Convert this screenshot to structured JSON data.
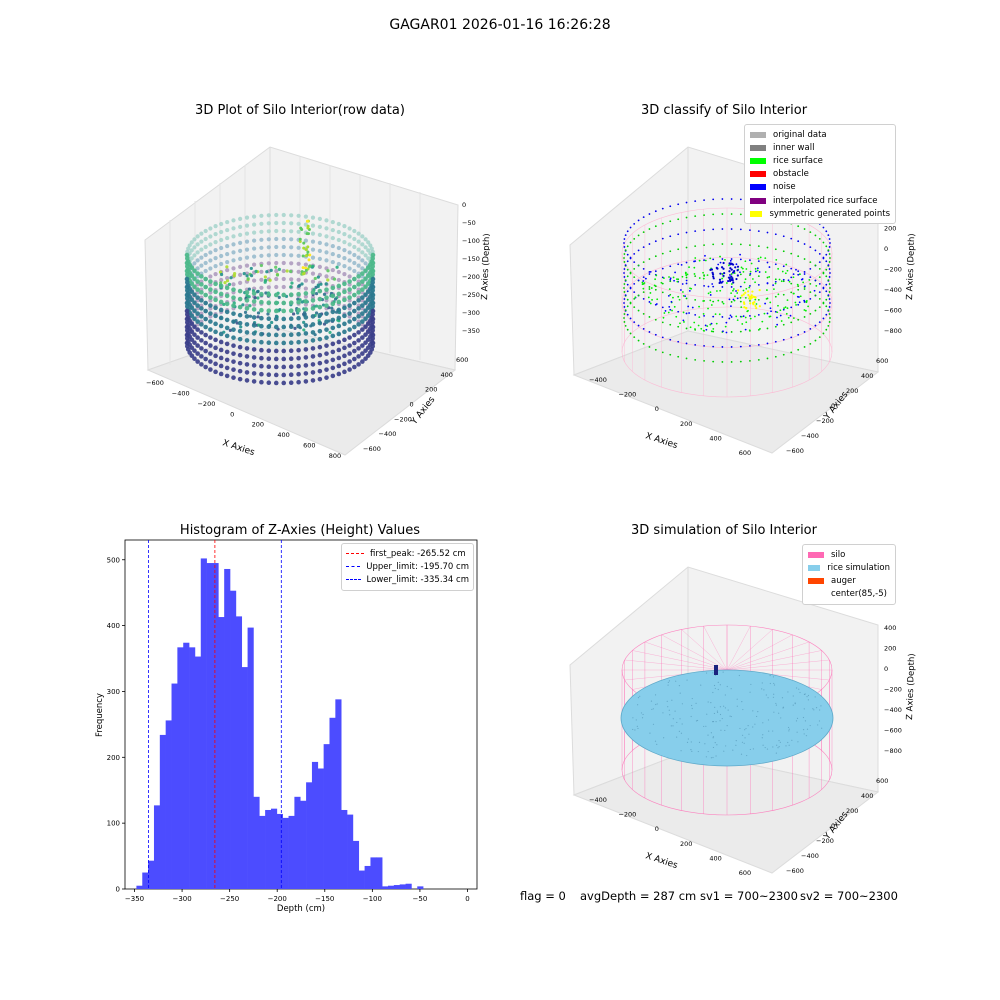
{
  "suptitle": "GAGAR01 2026-01-16 16:26:28",
  "panels": {
    "raw": {
      "title": "3D Plot of Silo Interior(row data)",
      "xlabel": "X Axies",
      "ylabel": "Y Axies",
      "zlabel": "Z Axies (Depth)",
      "xticks": [
        "−600",
        "−400",
        "−200",
        "0",
        "200",
        "400",
        "600",
        "800"
      ],
      "yticks": [
        "−600",
        "−400",
        "−200",
        "0",
        "200",
        "400",
        "600"
      ],
      "zticks": [
        "0",
        "−50",
        "−100",
        "−150",
        "−200",
        "−250",
        "−300",
        "−350"
      ]
    },
    "classify": {
      "title": "3D classify of Silo Interior",
      "xlabel": "X Axies",
      "ylabel": "Y Axies",
      "zlabel": "Z Axies (Depth)",
      "xticks": [
        "−400",
        "−200",
        "0",
        "200",
        "400",
        "600"
      ],
      "yticks": [
        "−600",
        "−400",
        "−200",
        "0",
        "200",
        "400",
        "600"
      ],
      "zticks": [
        "400",
        "200",
        "0",
        "−200",
        "−400",
        "−600",
        "−800"
      ],
      "legend": [
        {
          "label": "original data",
          "color": "#b0b0b0"
        },
        {
          "label": "inner wall",
          "color": "#808080"
        },
        {
          "label": "rice surface",
          "color": "#00ff00"
        },
        {
          "label": "obstacle",
          "color": "#ff0000"
        },
        {
          "label": "noise",
          "color": "#0000ff"
        },
        {
          "label": "interpolated rice surface",
          "color": "#800080"
        },
        {
          "label": "symmetric generated points",
          "color": "#ffff00"
        }
      ]
    },
    "simulation": {
      "title": "3D simulation of Silo Interior",
      "xlabel": "X Axies",
      "ylabel": "Y Axies",
      "zlabel": "Z Axies (Depth)",
      "xticks": [
        "−400",
        "−200",
        "0",
        "200",
        "400",
        "600"
      ],
      "yticks": [
        "−600",
        "−400",
        "−200",
        "0",
        "200",
        "400",
        "600"
      ],
      "zticks": [
        "400",
        "200",
        "0",
        "−200",
        "−400",
        "−600",
        "−800"
      ],
      "legend": [
        {
          "label": "silo",
          "color": "#ff69b4"
        },
        {
          "label": "rice simulation",
          "color": "#87ceeb"
        },
        {
          "label": "auger",
          "color": "#ff4500"
        },
        {
          "label": "center(85,-5)",
          "color": "#ffffff"
        }
      ]
    }
  },
  "status": {
    "flag": "flag = 0",
    "avg_depth": "avgDepth = 287 cm",
    "sv1": "sv1 = 700~2300",
    "sv2": "sv2 = 700~2300"
  },
  "chart_data": [
    {
      "type": "scatter",
      "title": "3D Plot of Silo Interior(row data)",
      "xlabel": "X Axies",
      "ylabel": "Y Axies",
      "zlabel": "Z Axies (Depth)",
      "xlim": [
        -600,
        800
      ],
      "ylim": [
        -600,
        600
      ],
      "zlim": [
        -350,
        0
      ],
      "colormap": "viridis"
    },
    {
      "type": "scatter",
      "title": "3D classify of Silo Interior",
      "xlabel": "X Axies",
      "ylabel": "Y Axies",
      "zlabel": "Z Axies (Depth)",
      "xlim": [
        -400,
        600
      ],
      "ylim": [
        -600,
        600
      ],
      "zlim": [
        -800,
        400
      ],
      "legend_placement": "top-right"
    },
    {
      "type": "bar",
      "title": "Histogram of Z-Axies (Height) Values",
      "xlabel": "Depth (cm)",
      "ylabel": "Frequency",
      "bar_color": "#4c4cff",
      "bin_start": -348,
      "bin_width": 6.15,
      "values": [
        5,
        25,
        43,
        127,
        234,
        256,
        312,
        367,
        374,
        367,
        353,
        502,
        495,
        495,
        413,
        486,
        453,
        414,
        337,
        397,
        140,
        111,
        120,
        122,
        114,
        108,
        111,
        140,
        134,
        162,
        193,
        183,
        220,
        260,
        288,
        120,
        113,
        73,
        28,
        35,
        48,
        48,
        4,
        5,
        6,
        7,
        8,
        0,
        4
      ],
      "xlim": [
        -360,
        10
      ],
      "xticks": [
        -350,
        -300,
        -250,
        -200,
        -150,
        -100,
        -50,
        0
      ],
      "ylim": [
        0,
        530
      ],
      "yticks": [
        0,
        100,
        200,
        300,
        400,
        500
      ],
      "vlines": [
        {
          "label": "first_peak: -265.52 cm",
          "x": -265.52,
          "color": "#ff0000"
        },
        {
          "label": "Upper_limit: -195.70 cm",
          "x": -195.7,
          "color": "#0000ff"
        },
        {
          "label": "Lower_limit: -335.34 cm",
          "x": -335.34,
          "color": "#0000ff"
        }
      ],
      "legend_placement": "top-right"
    },
    {
      "type": "scatter",
      "title": "3D simulation of Silo Interior",
      "xlabel": "X Axies",
      "ylabel": "Y Axies",
      "zlabel": "Z Axies (Depth)",
      "xlim": [
        -400,
        600
      ],
      "ylim": [
        -600,
        600
      ],
      "zlim": [
        -800,
        400
      ],
      "legend_placement": "top-right"
    }
  ]
}
